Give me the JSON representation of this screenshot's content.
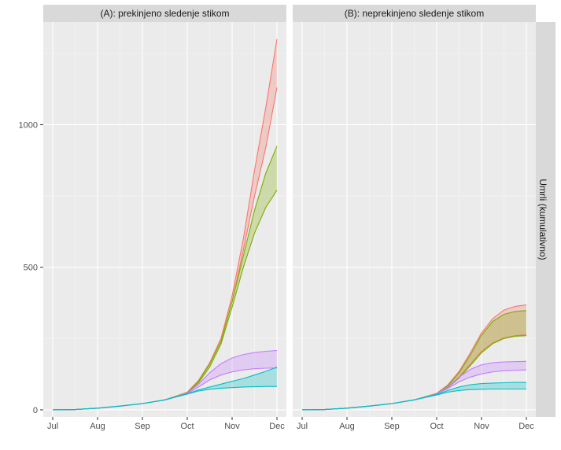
{
  "chart_data": {
    "type": "area",
    "y_label": "Umrli (kumulativno)",
    "x_ticks": [
      "Jul",
      "Aug",
      "Sep",
      "Oct",
      "Nov",
      "Dec"
    ],
    "x_range": [
      0,
      5
    ],
    "y_ticks": [
      0,
      500,
      1000
    ],
    "y_range": [
      -25,
      1360
    ],
    "grid": true,
    "legend": "none",
    "panels": [
      {
        "title": "(A): prekinjeno sledenje stikom",
        "bands": [
          {
            "color": "#F8766D",
            "x": [
              0,
              0.5,
              1,
              1.5,
              2,
              2.5,
              3,
              3.25,
              3.5,
              3.75,
              4,
              4.25,
              4.5,
              4.75,
              5
            ],
            "lower": [
              0,
              1,
              6,
              13,
              22,
              35,
              60,
              100,
              160,
              240,
              380,
              560,
              750,
              920,
              1130
            ],
            "upper": [
              0,
              1,
              6,
              13,
              22,
              35,
              62,
              103,
              165,
              250,
              400,
              600,
              840,
              1060,
              1300
            ]
          },
          {
            "color": "#7CAE00",
            "x": [
              0,
              0.5,
              1,
              1.5,
              2,
              2.5,
              3,
              3.25,
              3.5,
              3.75,
              4,
              4.25,
              4.5,
              4.75,
              5
            ],
            "lower": [
              0,
              1,
              6,
              13,
              22,
              35,
              58,
              95,
              150,
              230,
              360,
              500,
              620,
              710,
              770
            ],
            "upper": [
              0,
              1,
              6,
              13,
              22,
              35,
              60,
              100,
              160,
              240,
              380,
              540,
              700,
              830,
              925
            ]
          },
          {
            "color": "#C77CFF",
            "x": [
              0,
              0.5,
              1,
              1.5,
              2,
              2.5,
              3,
              3.25,
              3.5,
              3.75,
              4,
              4.25,
              4.5,
              4.75,
              5
            ],
            "lower": [
              0,
              1,
              6,
              13,
              22,
              35,
              56,
              80,
              105,
              122,
              133,
              140,
              144,
              146,
              147
            ],
            "upper": [
              0,
              1,
              6,
              13,
              22,
              35,
              58,
              90,
              130,
              162,
              182,
              194,
              201,
              205,
              208
            ]
          },
          {
            "color": "#00BFC4",
            "x": [
              0,
              0.5,
              1,
              1.5,
              2,
              2.5,
              3,
              3.25,
              3.5,
              3.75,
              4,
              4.25,
              4.5,
              4.75,
              5
            ],
            "lower": [
              0,
              1,
              6,
              13,
              22,
              35,
              55,
              66,
              72,
              76,
              78,
              80,
              81,
              82,
              82
            ],
            "upper": [
              0,
              1,
              6,
              13,
              22,
              35,
              56,
              70,
              80,
              90,
              100,
              110,
              122,
              135,
              150
            ]
          }
        ]
      },
      {
        "title": "(B): neprekinjeno sledenje stikom",
        "bands": [
          {
            "color": "#F8766D",
            "x": [
              0,
              0.5,
              1,
              1.5,
              2,
              2.5,
              3,
              3.25,
              3.5,
              3.75,
              4,
              4.25,
              4.5,
              4.75,
              5
            ],
            "lower": [
              0,
              1,
              6,
              13,
              22,
              35,
              56,
              80,
              115,
              160,
              205,
              235,
              252,
              260,
              263
            ],
            "upper": [
              0,
              1,
              6,
              13,
              22,
              35,
              58,
              88,
              135,
              200,
              270,
              320,
              350,
              363,
              368
            ]
          },
          {
            "color": "#7CAE00",
            "x": [
              0,
              0.5,
              1,
              1.5,
              2,
              2.5,
              3,
              3.25,
              3.5,
              3.75,
              4,
              4.25,
              4.5,
              4.75,
              5
            ],
            "lower": [
              0,
              1,
              6,
              13,
              22,
              35,
              56,
              78,
              112,
              155,
              200,
              232,
              250,
              258,
              260
            ],
            "upper": [
              0,
              1,
              6,
              13,
              22,
              35,
              57,
              85,
              130,
              192,
              262,
              310,
              335,
              345,
              348
            ]
          },
          {
            "color": "#C77CFF",
            "x": [
              0,
              0.5,
              1,
              1.5,
              2,
              2.5,
              3,
              3.25,
              3.5,
              3.75,
              4,
              4.25,
              4.5,
              4.75,
              5
            ],
            "lower": [
              0,
              1,
              6,
              13,
              22,
              35,
              55,
              75,
              98,
              115,
              126,
              133,
              137,
              139,
              140
            ],
            "upper": [
              0,
              1,
              6,
              13,
              22,
              35,
              56,
              82,
              115,
              142,
              158,
              165,
              168,
              169,
              170
            ]
          },
          {
            "color": "#00BFC4",
            "x": [
              0,
              0.5,
              1,
              1.5,
              2,
              2.5,
              3,
              3.25,
              3.5,
              3.75,
              4,
              4.25,
              4.5,
              4.75,
              5
            ],
            "lower": [
              0,
              1,
              6,
              13,
              22,
              35,
              52,
              62,
              68,
              71,
              72,
              73,
              73,
              73,
              73
            ],
            "upper": [
              0,
              1,
              6,
              13,
              22,
              35,
              54,
              68,
              80,
              88,
              92,
              94,
              95,
              96,
              96
            ]
          }
        ]
      }
    ]
  }
}
